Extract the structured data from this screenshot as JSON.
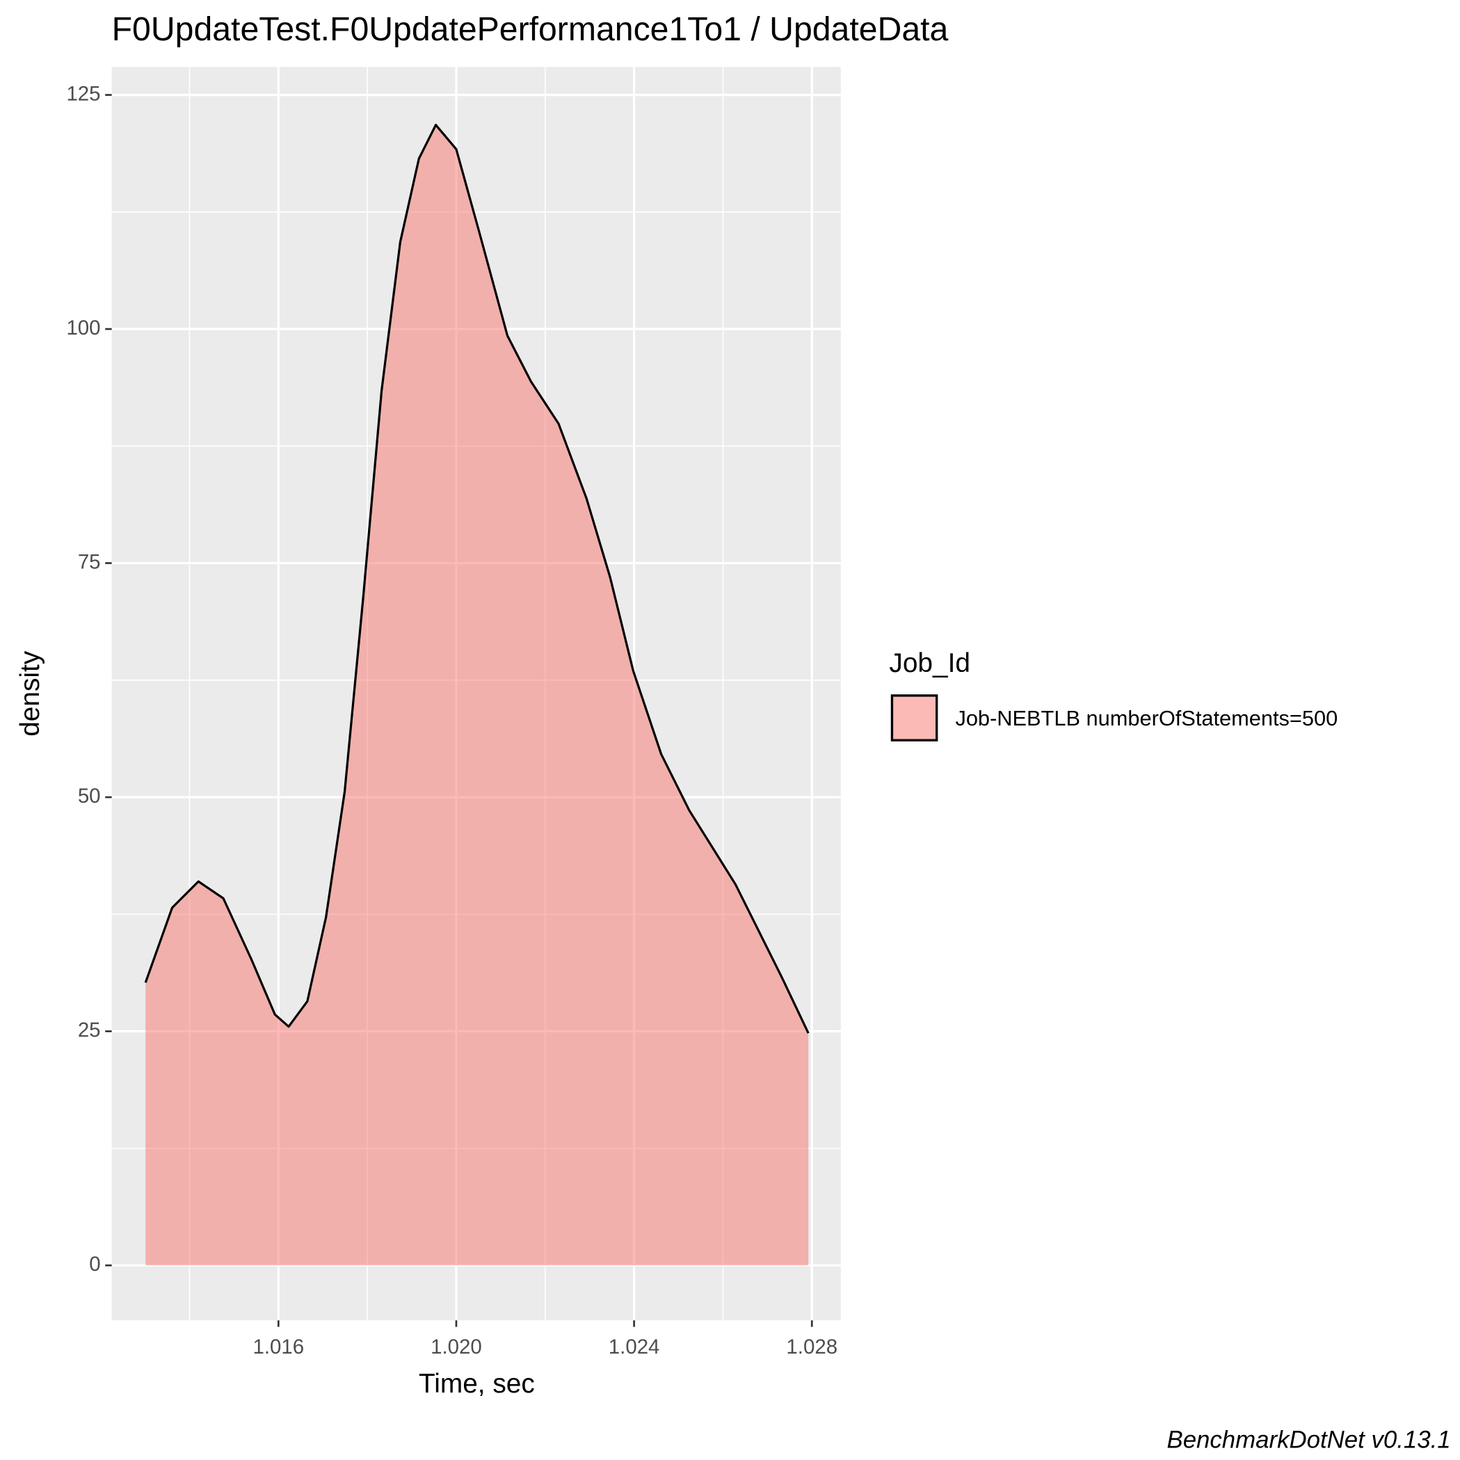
{
  "chart_data": {
    "type": "density",
    "title": "F0UpdateTest.F0UpdatePerformance1To1 / UpdateData",
    "x_label": "Time, sec",
    "y_label": "density",
    "legend_title": "Job_Id",
    "caption": "BenchmarkDotNet v0.13.1",
    "x": [
      1.01301,
      1.01361,
      1.0142,
      1.01476,
      1.01539,
      1.01592,
      1.01623,
      1.01665,
      1.01707,
      1.01749,
      1.01791,
      1.01832,
      1.01874,
      1.01916,
      1.01954,
      1.02,
      1.02052,
      1.02115,
      1.02168,
      1.0223,
      1.02293,
      1.02346,
      1.02398,
      1.02461,
      1.02524,
      1.02628,
      1.02733,
      1.02792
    ],
    "series": [
      {
        "name": "Job-NEBTLB numberOfStatements=500",
        "color": "#F8766D",
        "values": [
          30.2,
          38.2,
          41.0,
          39.2,
          32.7,
          26.8,
          25.5,
          28.2,
          37.2,
          50.6,
          71.5,
          93.4,
          109.3,
          118.2,
          121.8,
          119.2,
          110.3,
          99.3,
          94.4,
          89.9,
          81.9,
          73.5,
          63.5,
          54.6,
          48.6,
          40.7,
          30.7,
          24.8
        ]
      }
    ],
    "xlim": [
      1.01225,
      1.02865
    ],
    "ylim": [
      -5.87,
      127.98
    ],
    "xticks": [
      1.016,
      {
        "value": 1.02,
        "label": "1.020"
      },
      1.024,
      1.028
    ],
    "yticks": [
      0,
      25,
      50,
      75,
      100,
      125
    ],
    "minor_xticks": [
      1.014,
      1.018,
      1.022,
      1.026
    ],
    "minor_yticks": [
      12.5,
      37.5,
      62.5,
      87.5,
      112.5
    ],
    "grid": true
  }
}
